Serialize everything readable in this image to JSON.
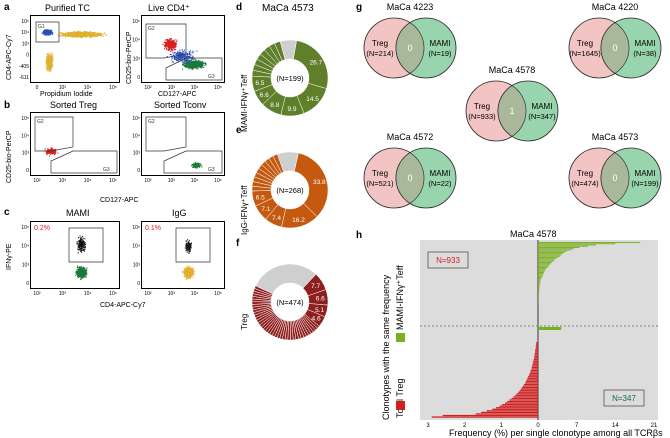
{
  "panels": {
    "a": {
      "label": "a",
      "left_title": "Purified TC",
      "right_title": "Live CD4⁺",
      "left_ylabel": "CD4-APC-Cy7",
      "left_xlabel": "Propidium Iodide",
      "right_ylabel": "CD25-bio-PerCP",
      "right_xlabel": "CD127-APC",
      "gate_g1": "G1",
      "gate_g2": "G2",
      "gate_g3": "G3",
      "ticks_left_x": [
        "0",
        "10³",
        "10⁴",
        "10⁵"
      ],
      "ticks_left_y": [
        "10⁵",
        "10⁴",
        "10³",
        "0",
        "-405",
        "-611"
      ],
      "ticks_right_x": [
        "10²",
        "10³",
        "10⁴",
        "10⁵"
      ],
      "ticks_right_y": [
        "10⁵",
        "10⁴",
        "10³",
        "0"
      ]
    },
    "b": {
      "label": "b",
      "left_title": "Sorted Treg",
      "right_title": "Sorted Tconv",
      "ylabel": "CD25-bio-PerCP",
      "xlabel": "CD127-APC",
      "gate_g2": "G2",
      "gate_g3": "G3",
      "ticks_x": [
        "10²",
        "10³",
        "10⁴",
        "10⁵"
      ],
      "ticks_y": [
        "10⁵",
        "10⁴",
        "10³",
        "0"
      ]
    },
    "c": {
      "label": "c",
      "left_title": "MAMI",
      "right_title": "IgG",
      "left_pct": "0.2%",
      "right_pct": "0.1%",
      "ylabel": "IFNγ-PE",
      "xlabel": "CD4-APC-Cy7",
      "ticks_x": [
        "10²",
        "10³",
        "10⁴",
        "10⁵"
      ],
      "ticks_y": [
        "10⁵",
        "10⁴",
        "10³",
        "0"
      ]
    },
    "d": {
      "label": "d",
      "title": "MaCa 4573",
      "side_label": "MAMI-IFNγ⁺Teff",
      "center": "(N=199)"
    },
    "e": {
      "label": "e",
      "side_label": "IgG-IFNγ⁺Teff",
      "center": "(N=268)"
    },
    "f": {
      "label": "f",
      "side_label": "Treg",
      "center": "(N=474)"
    },
    "g": {
      "label": "g",
      "venns": [
        {
          "title": "MaCa 4223",
          "left_name": "Treg",
          "left_n": "(N=214)",
          "overlap": "0",
          "right_name": "MAMI",
          "right_n": "(N=19)"
        },
        {
          "title": "MaCa 4220",
          "left_name": "Treg",
          "left_n": "(N=1645)",
          "overlap": "0",
          "right_name": "MAMI",
          "right_n": "(N=38)"
        },
        {
          "title": "MaCa 4578",
          "left_name": "Treg",
          "left_n": "(N=933)",
          "overlap": "1",
          "right_name": "MAMI",
          "right_n": "(N=347)"
        },
        {
          "title": "MaCa 4572",
          "left_name": "Treg",
          "left_n": "(N=521)",
          "overlap": "0",
          "right_name": "MAMI",
          "right_n": "(N=22)"
        },
        {
          "title": "MaCa 4573",
          "left_name": "Treg",
          "left_n": "(N=474)",
          "overlap": "0",
          "right_name": "MAMI",
          "right_n": "(N=199)"
        }
      ]
    },
    "h": {
      "label": "h",
      "title": "MaCa 4578",
      "ylabel": "Clonotypes with the same frequency",
      "top_label": "MAMI-IFNγ⁺Teff",
      "bottom_label": "Total Treg",
      "treg_n": "N=933",
      "mami_n": "N=347",
      "xlabel": "Frequency (%) per single clonotype among all TCRβs",
      "xticks": [
        "3",
        "2",
        "1",
        "0",
        "7",
        "14",
        "21"
      ]
    }
  },
  "chart_data": [
    {
      "type": "pie",
      "title": "MaCa 4573 MAMI-IFNγ⁺Teff",
      "center_label": "(N=199)",
      "values": [
        26.7,
        14.5,
        9.9,
        8.8,
        6.6,
        6.5
      ],
      "value_labels": [
        "26.7",
        "14.5",
        "9.9",
        "8.8",
        "6.6",
        "6.5"
      ],
      "rest_labelled_share": 0.08,
      "grey_share": 0.07,
      "color": "#5f7f2a",
      "grey": "#cfcfcf"
    },
    {
      "type": "pie",
      "title": "IgG-IFNγ⁺Teff",
      "center_label": "(N=268)",
      "values": [
        33.8,
        16.2,
        7.4,
        7.1,
        6.5
      ],
      "value_labels": [
        "33.8",
        "16.2",
        "7.4",
        "7.1",
        "6.5"
      ],
      "rest_labelled_share": 0.14,
      "grey_share": 0.09,
      "color": "#c45a10",
      "grey": "#cfcfcf"
    },
    {
      "type": "pie",
      "title": "Treg",
      "center_label": "(N=474)",
      "values": [
        7.7,
        6.6,
        5.1,
        4.6
      ],
      "value_labels": [
        "7.7",
        "6.6",
        "5.1",
        "4.6"
      ],
      "rest_labelled_share": 0.46,
      "grey_share": 0.3,
      "color": "#8e1f1f",
      "grey": "#cfcfcf"
    },
    {
      "type": "bar",
      "title": "MaCa 4578",
      "xlabel": "Frequency (%) per single clonotype among all TCRβs",
      "series": [
        {
          "name": "MAMI-IFNγ⁺Teff",
          "direction": "right",
          "xlim": [
            0,
            21
          ],
          "values": [
            18.5,
            14,
            10.5,
            9,
            7.5,
            6.5,
            6,
            5.2,
            4.8,
            4.5,
            4.2,
            4,
            3.6,
            3.2,
            3,
            2.8,
            2.5,
            2.3,
            2.1,
            1.9,
            1.7,
            1.5,
            1.3,
            1.2,
            1.1,
            1.0,
            0.9,
            0.8,
            0.7,
            0.6,
            0.5,
            0.45,
            0.4,
            0.35,
            0.3,
            0.28,
            0.26,
            0.24,
            0.22,
            0.2,
            0.18,
            0.16,
            0.15,
            0.14,
            0.12,
            0.11,
            0.1,
            0.1
          ]
        },
        {
          "name": "Total Treg",
          "direction": "left",
          "xlim": [
            0,
            3
          ],
          "values": [
            2.9,
            2.6,
            1.7,
            1.55,
            1.4,
            1.25,
            1.15,
            1.05,
            0.98,
            0.9,
            0.84,
            0.78,
            0.72,
            0.67,
            0.62,
            0.58,
            0.54,
            0.5,
            0.47,
            0.44,
            0.41,
            0.38,
            0.35,
            0.33,
            0.31,
            0.29,
            0.27,
            0.25,
            0.23,
            0.21,
            0.2,
            0.18,
            0.17,
            0.16,
            0.15,
            0.14,
            0.13,
            0.12,
            0.11,
            0.1,
            0.1,
            0.09,
            0.08,
            0.08,
            0.07,
            0.06,
            0.06,
            0.05,
            0.05
          ]
        }
      ],
      "shared_value": 4.2
    }
  ],
  "colors": {
    "blue": "#2b4fb8",
    "gold": "#e0b030",
    "red": "#d82020",
    "green": "#1a7a3a",
    "black": "#111111",
    "pink": "#f2c4c4",
    "mint": "#8fd0a6",
    "treg_bar": "#d02020",
    "mami_bar": "#7ab020",
    "plot_bg": "#dcdcdc"
  }
}
